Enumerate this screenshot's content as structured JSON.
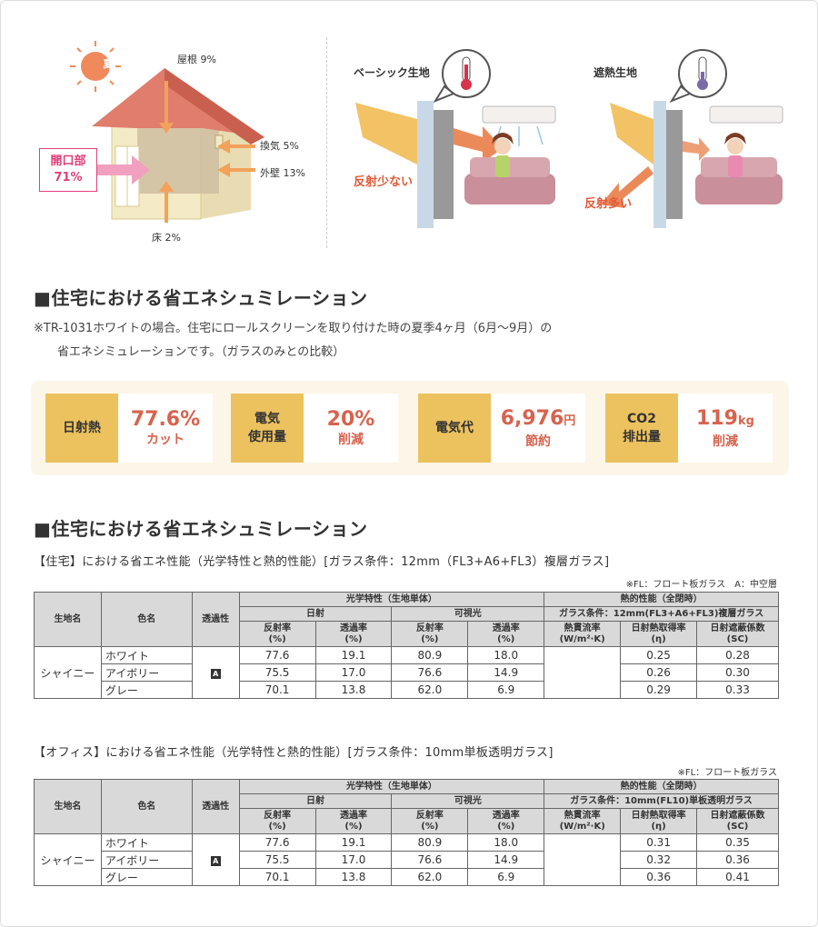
{
  "illustration": {
    "season": "夏",
    "roof": "屋根 9%",
    "ventilation": "換気 5%",
    "outer_wall": "外壁 13%",
    "floor": "床 2%",
    "opening_label": "開口部",
    "opening_value": "71%",
    "basic_fabric": "ベーシック生地",
    "basic_reflect": "反射少ない",
    "heat_fabric": "遮熱生地",
    "heat_reflect": "反射多い"
  },
  "section1": {
    "heading": "■住宅における省エネシュミレーション",
    "note_line1": "※TR-1031ホワイトの場合。住宅にロールスクリーンを取り付けた時の夏季4ヶ月（6月〜9月）の",
    "note_line2": "省エネシミュレーションです。（ガラスのみとの比較）"
  },
  "summary": [
    {
      "key": "日射熱",
      "value": "77.6%",
      "unit": "",
      "sub": "カット"
    },
    {
      "key": "電気\n使用量",
      "value": "20%",
      "unit": "",
      "sub": "削減"
    },
    {
      "key": "電気代",
      "value": "6,976",
      "unit": "円",
      "sub": "節約"
    },
    {
      "key": "CO2\n排出量",
      "value": "119",
      "unit": "kg",
      "sub": "削減"
    }
  ],
  "section2": {
    "heading": "■住宅における省エネシュミレーション"
  },
  "table_headers": {
    "fabric": "生地名",
    "color": "色名",
    "transparency": "透過性",
    "optical": "光学特性（生地単体）",
    "solar": "日射",
    "visible": "可視光",
    "reflect": "反射率",
    "transmit": "透過率",
    "pct": "(%)",
    "thermal": "熱的性能（全閉時）",
    "heat_flow": "熱貫流率",
    "heat_flow_unit": "(W/m²·K)",
    "shgc": "日射熱取得率",
    "shgc_unit": "(η)",
    "sc": "日射遮蔽係数",
    "sc_unit": "(SC)"
  },
  "residential": {
    "caption": "【住宅】における省エネ性能（光学特性と熱的性能）[ガラス条件：12mm（FL3+A6+FL3）複層ガラス]",
    "footnote": "※FL：フロート板ガラス　A：中空層",
    "glass_condition": "ガラス条件：12mm(FL3+A6+FL3)複層ガラス",
    "fabric_name": "シャイニー",
    "transparency": "A",
    "rows": [
      {
        "color": "ホワイト",
        "sr": "77.6",
        "st": "19.1",
        "vr": "80.9",
        "vt": "18.0",
        "eta": "0.25",
        "sc": "0.28"
      },
      {
        "color": "アイボリー",
        "sr": "75.5",
        "st": "17.0",
        "vr": "76.6",
        "vt": "14.9",
        "eta": "0.26",
        "sc": "0.30"
      },
      {
        "color": "グレー",
        "sr": "70.1",
        "st": "13.8",
        "vr": "62.0",
        "vt": "6.9",
        "eta": "0.29",
        "sc": "0.33"
      }
    ]
  },
  "office": {
    "caption": "【オフィス】における省エネ性能（光学特性と熱的性能）[ガラス条件：10mm単板透明ガラス]",
    "footnote": "※FL：フロート板ガラス",
    "glass_condition": "ガラス条件：10mm(FL10)単板透明ガラス",
    "fabric_name": "シャイニー",
    "transparency": "A",
    "rows": [
      {
        "color": "ホワイト",
        "sr": "77.6",
        "st": "19.1",
        "vr": "80.9",
        "vt": "18.0",
        "eta": "0.31",
        "sc": "0.35"
      },
      {
        "color": "アイボリー",
        "sr": "75.5",
        "st": "17.0",
        "vr": "76.6",
        "vt": "14.9",
        "eta": "0.32",
        "sc": "0.36"
      },
      {
        "color": "グレー",
        "sr": "70.1",
        "st": "13.8",
        "vr": "62.0",
        "vt": "6.9",
        "eta": "0.36",
        "sc": "0.41"
      }
    ]
  }
}
